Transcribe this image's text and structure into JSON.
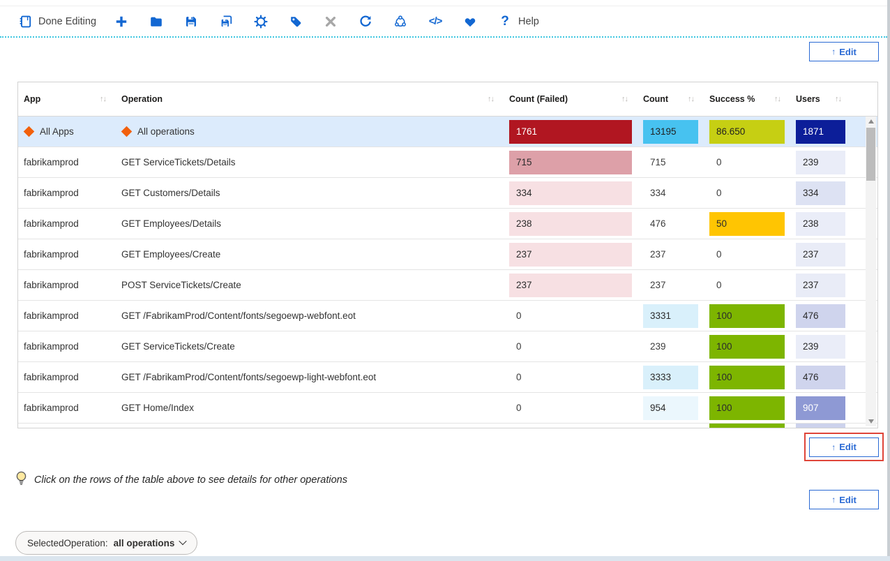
{
  "toolbar": {
    "items": [
      {
        "name": "done-editing",
        "icon": "notebook-icon",
        "label": "Done Editing"
      },
      {
        "name": "add",
        "icon": "plus-icon"
      },
      {
        "name": "open",
        "icon": "folder-icon"
      },
      {
        "name": "save",
        "icon": "save-icon"
      },
      {
        "name": "save-as",
        "icon": "save-copy-icon"
      },
      {
        "name": "settings",
        "icon": "gear-icon"
      },
      {
        "name": "tag",
        "icon": "tag-icon"
      },
      {
        "name": "close",
        "icon": "close-icon"
      },
      {
        "name": "refresh",
        "icon": "refresh-icon"
      },
      {
        "name": "share",
        "icon": "share-icon"
      },
      {
        "name": "advanced-editor",
        "icon": "code-icon"
      },
      {
        "name": "favorite",
        "icon": "heart-icon"
      },
      {
        "name": "help",
        "icon": "question-icon",
        "label": "Help"
      }
    ]
  },
  "edit_button": {
    "arrow": "↑",
    "label": "Edit"
  },
  "table": {
    "sort_glyph": "↑↓",
    "columns": [
      {
        "key": "app",
        "label": "App"
      },
      {
        "key": "operation",
        "label": "Operation"
      },
      {
        "key": "count-failed",
        "label": "Count (Failed)"
      },
      {
        "key": "count",
        "label": "Count"
      },
      {
        "key": "success",
        "label": "Success %"
      },
      {
        "key": "users",
        "label": "Users"
      }
    ],
    "rows": [
      {
        "app": "All Apps",
        "operation": "All operations",
        "icon": true,
        "selected": true,
        "failed": {
          "t": "1761",
          "bg": "#b11621",
          "fg": "#ffffff"
        },
        "count": {
          "t": "13195",
          "bg": "#47c2f0",
          "fg": "#1f1f1f"
        },
        "success": {
          "t": "86.650",
          "bg": "#c6cf13",
          "fg": "#1f1f1f"
        },
        "users": {
          "t": "1871",
          "bg": "#0c1e99",
          "fg": "#ffffff"
        }
      },
      {
        "app": "fabrikamprod",
        "operation": "GET ServiceTickets/Details",
        "failed": {
          "t": "715",
          "bg": "#dda0a8"
        },
        "count": {
          "t": "715"
        },
        "success": {
          "t": "0"
        },
        "users": {
          "t": "239",
          "bg": "#eaedf8"
        }
      },
      {
        "app": "fabrikamprod",
        "operation": "GET Customers/Details",
        "failed": {
          "t": "334",
          "bg": "#f7e0e3"
        },
        "count": {
          "t": "334"
        },
        "success": {
          "t": "0"
        },
        "users": {
          "t": "334",
          "bg": "#dde2f3"
        }
      },
      {
        "app": "fabrikamprod",
        "operation": "GET Employees/Details",
        "failed": {
          "t": "238",
          "bg": "#f7e0e3"
        },
        "count": {
          "t": "476"
        },
        "success": {
          "t": "50",
          "bg": "#ffc502"
        },
        "users": {
          "t": "238",
          "bg": "#eaedf8"
        }
      },
      {
        "app": "fabrikamprod",
        "operation": "GET Employees/Create",
        "failed": {
          "t": "237",
          "bg": "#f7e0e3"
        },
        "count": {
          "t": "237"
        },
        "success": {
          "t": "0"
        },
        "users": {
          "t": "237",
          "bg": "#e9ecf7"
        }
      },
      {
        "app": "fabrikamprod",
        "operation": "POST ServiceTickets/Create",
        "failed": {
          "t": "237",
          "bg": "#f7e0e3"
        },
        "count": {
          "t": "237"
        },
        "success": {
          "t": "0"
        },
        "users": {
          "t": "237",
          "bg": "#e9ecf7"
        }
      },
      {
        "app": "fabrikamprod",
        "operation": "GET /FabrikamProd/Content/fonts/segoewp-webfont.eot",
        "failed": {
          "t": "0"
        },
        "count": {
          "t": "3331",
          "bg": "#d9f0fb"
        },
        "success": {
          "t": "100",
          "bg": "#7db500"
        },
        "users": {
          "t": "476",
          "bg": "#cfd4ed"
        }
      },
      {
        "app": "fabrikamprod",
        "operation": "GET ServiceTickets/Create",
        "failed": {
          "t": "0"
        },
        "count": {
          "t": "239"
        },
        "success": {
          "t": "100",
          "bg": "#7db500"
        },
        "users": {
          "t": "239",
          "bg": "#eaedf8"
        }
      },
      {
        "app": "fabrikamprod",
        "operation": "GET /FabrikamProd/Content/fonts/segoewp-light-webfont.eot",
        "failed": {
          "t": "0"
        },
        "count": {
          "t": "3333",
          "bg": "#d9f0fb"
        },
        "success": {
          "t": "100",
          "bg": "#7db500"
        },
        "users": {
          "t": "476",
          "bg": "#cfd4ed"
        }
      },
      {
        "app": "fabrikamprod",
        "operation": "GET Home/Index",
        "failed": {
          "t": "0"
        },
        "count": {
          "t": "954",
          "bg": "#ebf7fd"
        },
        "success": {
          "t": "100",
          "bg": "#7db500"
        },
        "users": {
          "t": "907",
          "bg": "#8e99d4",
          "fg": "#ffffff"
        }
      },
      {
        "app": "",
        "operation": "",
        "partial": true,
        "failed": {
          "t": ""
        },
        "count": {
          "t": ""
        },
        "success": {
          "t": "",
          "bg": "#7db500"
        },
        "users": {
          "t": "",
          "bg": "#ccd2ec"
        }
      }
    ]
  },
  "tip": {
    "text": "Click on the rows of the table above to see details for other operations"
  },
  "selected_operation": {
    "label": "SelectedOperation:",
    "value": "all operations"
  },
  "colors": {
    "accent_blue": "#1267d2",
    "edit_blue": "#2a6ad4",
    "highlight_red": "#df4539",
    "dotted_border": "#3ec6e0",
    "diamond_orange": "#f2600c",
    "selected_row": "#dcebfc",
    "close_gray": "#a7a7a7"
  }
}
